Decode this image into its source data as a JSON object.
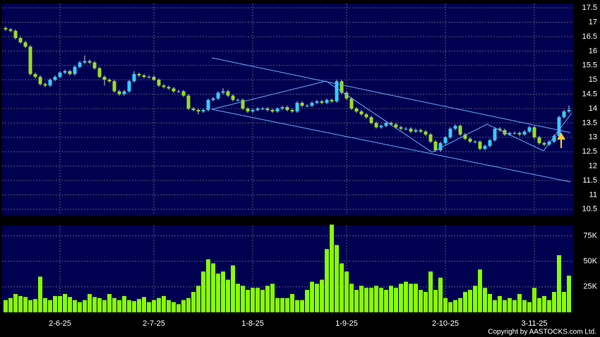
{
  "chart_data": [
    {
      "type": "candlestick",
      "up_color": "#33ccff",
      "down_color": "#99dd22",
      "grid": true,
      "ylim": [
        10.3,
        17.65
      ],
      "yticks": [
        10.5,
        11,
        11.5,
        12,
        12.5,
        13,
        13.5,
        14,
        14.5,
        15,
        15.5,
        16,
        16.5,
        17,
        17.5
      ],
      "open": [
        16.8,
        16.75,
        16.7,
        16.45,
        16.3,
        16.15,
        15.2,
        15.1,
        14.85,
        14.8,
        15.0,
        15.1,
        15.25,
        15.3,
        15.2,
        15.45,
        15.6,
        15.65,
        15.6,
        15.4,
        15.1,
        15.0,
        14.95,
        14.6,
        14.5,
        14.6,
        14.95,
        15.2,
        15.15,
        15.1,
        15.1,
        15.0,
        14.8,
        14.75,
        14.7,
        14.6,
        14.6,
        14.45,
        14.0,
        13.95,
        13.9,
        13.95,
        14.3,
        14.35,
        14.55,
        14.6,
        14.45,
        14.3,
        14.3,
        14.0,
        13.9,
        13.95,
        14.0,
        14.0,
        13.95,
        13.9,
        14.0,
        14.05,
        13.95,
        13.9,
        14.2,
        14.1,
        14.1,
        14.2,
        14.25,
        14.2,
        14.3,
        14.25,
        14.95,
        14.55,
        14.35,
        14.0,
        13.9,
        13.8,
        13.7,
        13.5,
        13.35,
        13.4,
        13.5,
        13.45,
        13.35,
        13.3,
        13.3,
        13.2,
        13.25,
        13.2,
        13.1,
        12.85,
        12.55,
        12.8,
        13.0,
        13.3,
        13.4,
        13.1,
        12.95,
        12.85,
        12.85,
        12.6,
        12.7,
        12.9,
        13.3,
        13.25,
        13.1,
        13.15,
        13.15,
        13.1,
        13.2,
        13.35,
        13.0,
        12.8,
        12.75,
        12.85,
        13.05,
        13.7,
        13.9
      ],
      "high": [
        16.85,
        16.8,
        16.75,
        16.5,
        16.35,
        16.2,
        15.25,
        15.15,
        14.9,
        15.05,
        15.15,
        15.3,
        15.35,
        15.35,
        15.5,
        15.65,
        15.85,
        15.7,
        15.65,
        15.45,
        15.15,
        15.05,
        15.0,
        14.65,
        14.65,
        15.0,
        15.3,
        15.25,
        15.2,
        15.15,
        15.15,
        15.05,
        14.85,
        14.8,
        14.75,
        14.65,
        14.65,
        14.5,
        14.05,
        14.0,
        14.0,
        14.35,
        14.4,
        14.6,
        14.7,
        14.65,
        14.5,
        14.35,
        14.35,
        14.05,
        14.0,
        14.05,
        14.05,
        14.05,
        14.0,
        14.05,
        14.1,
        14.1,
        14.0,
        14.25,
        14.25,
        14.15,
        14.25,
        14.3,
        14.3,
        14.35,
        14.35,
        15.0,
        15.0,
        14.6,
        14.4,
        14.05,
        13.95,
        13.85,
        13.75,
        13.55,
        13.45,
        13.55,
        13.55,
        13.5,
        13.4,
        13.35,
        13.35,
        13.3,
        13.3,
        13.25,
        13.15,
        12.9,
        12.85,
        13.05,
        13.35,
        13.45,
        13.45,
        13.15,
        13.0,
        12.9,
        12.9,
        12.75,
        12.95,
        13.35,
        13.35,
        13.3,
        13.2,
        13.2,
        13.2,
        13.25,
        13.4,
        13.4,
        13.05,
        12.85,
        12.9,
        13.1,
        13.75,
        13.95,
        14.1
      ],
      "low": [
        16.7,
        16.65,
        16.4,
        16.25,
        16.1,
        15.15,
        15.05,
        14.8,
        14.75,
        14.75,
        14.95,
        15.05,
        15.2,
        15.15,
        15.15,
        15.4,
        15.55,
        15.55,
        15.35,
        15.05,
        14.8,
        14.9,
        14.55,
        14.45,
        14.45,
        14.55,
        14.9,
        15.1,
        15.05,
        15.05,
        14.95,
        14.75,
        14.7,
        14.65,
        14.55,
        14.55,
        14.4,
        13.95,
        13.9,
        13.8,
        13.85,
        13.9,
        14.25,
        14.3,
        14.5,
        14.4,
        14.25,
        14.25,
        13.95,
        13.85,
        13.85,
        13.9,
        13.95,
        13.9,
        13.85,
        13.85,
        13.95,
        13.9,
        13.85,
        13.85,
        14.05,
        14.05,
        14.05,
        14.15,
        14.15,
        14.15,
        14.2,
        14.2,
        14.5,
        14.3,
        13.95,
        13.85,
        13.75,
        13.65,
        13.45,
        13.3,
        13.3,
        13.35,
        13.4,
        13.3,
        13.25,
        13.25,
        13.15,
        13.15,
        13.15,
        13.05,
        12.8,
        12.5,
        12.5,
        12.75,
        12.95,
        13.25,
        13.05,
        12.9,
        12.8,
        12.8,
        12.55,
        12.55,
        12.65,
        12.85,
        13.2,
        13.05,
        13.05,
        13.1,
        13.05,
        13.05,
        13.15,
        12.95,
        12.75,
        12.7,
        12.7,
        12.8,
        13.0,
        13.65,
        13.85
      ],
      "close": [
        16.75,
        16.7,
        16.45,
        16.3,
        16.15,
        15.2,
        15.1,
        14.85,
        14.8,
        15.0,
        15.1,
        15.25,
        15.3,
        15.2,
        15.45,
        15.6,
        15.65,
        15.6,
        15.4,
        15.1,
        15.0,
        14.95,
        14.6,
        14.5,
        14.6,
        14.95,
        15.2,
        15.15,
        15.1,
        15.1,
        15.0,
        14.8,
        14.75,
        14.7,
        14.6,
        14.6,
        14.45,
        14.0,
        13.95,
        13.9,
        13.95,
        14.3,
        14.35,
        14.55,
        14.6,
        14.45,
        14.3,
        14.3,
        14.0,
        13.9,
        13.95,
        14.0,
        14.0,
        13.95,
        13.9,
        14.0,
        14.05,
        13.95,
        13.9,
        14.2,
        14.1,
        14.1,
        14.2,
        14.25,
        14.2,
        14.3,
        14.25,
        14.95,
        14.55,
        14.35,
        14.0,
        13.9,
        13.8,
        13.7,
        13.5,
        13.35,
        13.4,
        13.5,
        13.45,
        13.35,
        13.3,
        13.3,
        13.2,
        13.25,
        13.2,
        13.1,
        12.85,
        12.55,
        12.8,
        13.0,
        13.3,
        13.4,
        13.1,
        12.95,
        12.85,
        12.85,
        12.6,
        12.7,
        12.9,
        13.3,
        13.25,
        13.1,
        13.15,
        13.15,
        13.1,
        13.2,
        13.35,
        13.0,
        12.8,
        12.75,
        12.85,
        13.05,
        13.7,
        13.9,
        13.95
      ]
    },
    {
      "type": "bar",
      "color": "#88ff00",
      "grid": true,
      "ylim": [
        0,
        85000
      ],
      "yticks": [
        {
          "value": 25000,
          "label": "25K"
        },
        {
          "value": 50000,
          "label": "50K"
        },
        {
          "value": 75000,
          "label": "75K"
        }
      ],
      "categories": [
        null,
        null,
        null,
        null,
        null,
        null,
        null,
        null,
        null,
        null,
        null,
        "2-6-25",
        null,
        null,
        null,
        null,
        null,
        null,
        null,
        null,
        null,
        null,
        null,
        null,
        null,
        null,
        null,
        null,
        null,
        null,
        "2-7-25",
        null,
        null,
        null,
        null,
        null,
        null,
        null,
        null,
        null,
        null,
        null,
        null,
        null,
        null,
        null,
        null,
        null,
        null,
        null,
        "1-8-25",
        null,
        null,
        null,
        null,
        null,
        null,
        null,
        null,
        null,
        null,
        null,
        null,
        null,
        null,
        null,
        null,
        null,
        null,
        "1-9-25",
        null,
        null,
        null,
        null,
        null,
        null,
        null,
        null,
        null,
        null,
        null,
        null,
        null,
        null,
        null,
        null,
        null,
        null,
        null,
        "2-10-25",
        null,
        null,
        null,
        null,
        null,
        null,
        null,
        null,
        null,
        null,
        null,
        null,
        null,
        null,
        null,
        null,
        null,
        "3-11-25",
        null,
        null,
        null,
        null,
        null,
        null,
        null
      ],
      "values": [
        12000,
        14000,
        18000,
        16000,
        15000,
        12000,
        13000,
        35000,
        14000,
        12000,
        16000,
        16000,
        18000,
        15000,
        12000,
        10000,
        12000,
        18000,
        15000,
        14000,
        12000,
        18000,
        14000,
        12000,
        16000,
        12000,
        11000,
        13000,
        15000,
        10000,
        12000,
        14000,
        16000,
        12000,
        10000,
        8000,
        12000,
        14000,
        20000,
        26000,
        40000,
        52000,
        48000,
        38000,
        40000,
        32000,
        46000,
        28000,
        26000,
        22000,
        24000,
        24000,
        22000,
        26000,
        28000,
        14000,
        14000,
        14000,
        18000,
        12000,
        12000,
        22000,
        30000,
        28000,
        32000,
        62000,
        86000,
        66000,
        48000,
        40000,
        28000,
        22000,
        26000,
        24000,
        24000,
        26000,
        24000,
        22000,
        26000,
        24000,
        28000,
        30000,
        28000,
        28000,
        22000,
        20000,
        40000,
        22000,
        34000,
        14000,
        10000,
        12000,
        14000,
        20000,
        22000,
        26000,
        42000,
        24000,
        18000,
        12000,
        16000,
        12000,
        14000,
        12000,
        18000,
        12000,
        10000,
        24000,
        14000,
        16000,
        12000,
        20000,
        56000,
        20000,
        36000
      ]
    }
  ],
  "footer": "Copyright by AASTOCKS.com Ltd."
}
